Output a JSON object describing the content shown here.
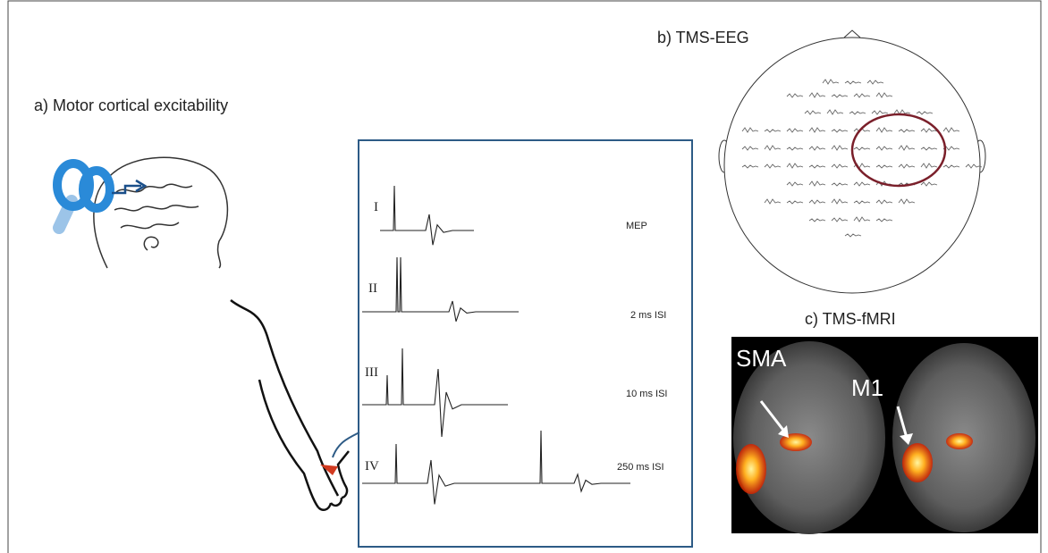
{
  "panels": {
    "a": {
      "label": "a) Motor cortical excitability",
      "traces": [
        {
          "roman": "I",
          "label": "MEP"
        },
        {
          "roman": "II",
          "label": "2 ms ISI"
        },
        {
          "roman": "III",
          "label": "10 ms ISI"
        },
        {
          "roman": "IV",
          "label": "250 ms ISI"
        }
      ]
    },
    "b": {
      "label": "b) TMS-EEG"
    },
    "c": {
      "label": "c) TMS-fMRI",
      "regions": [
        "SMA",
        "M1"
      ]
    }
  }
}
